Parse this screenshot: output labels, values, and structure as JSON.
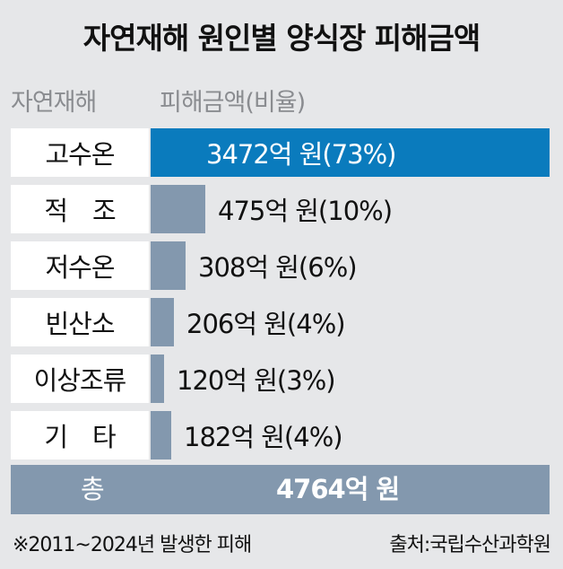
{
  "chart_data": {
    "type": "bar",
    "title": "자연재해 원인별 양식장 피해금액",
    "category_header": "자연재해",
    "value_header": "피해금액(비율)",
    "categories": [
      "고수온",
      "적　조",
      "저수온",
      "빈산소",
      "이상조류",
      "기　타"
    ],
    "values": [
      3472,
      475,
      308,
      206,
      120,
      182
    ],
    "value_labels": [
      "3472억 원(73%)",
      "475억 원(10%)",
      "308억 원(6%)",
      "206억 원(4%)",
      "120억 원(3%)",
      "182억 원(4%)"
    ],
    "unit": "억 원",
    "total_label": "총",
    "total_value": "4764억 원",
    "footnote": "※2011~2024년 발생한 피해",
    "source": "출처:국립수산과학원"
  },
  "colors": {
    "highlight_bar": "#0a7bbd",
    "bar": "#8398ae",
    "background": "#e6e7e9"
  }
}
